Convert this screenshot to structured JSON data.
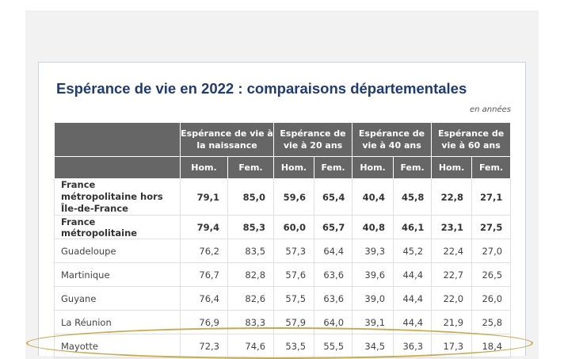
{
  "title": "Espérance de vie en 2022 : comparaisons départementales",
  "unit_note": "en années",
  "table": {
    "groups": [
      {
        "label": "Espérance de vie à la naissance"
      },
      {
        "label": "Espérance de vie à 20 ans"
      },
      {
        "label": "Espérance de vie à 40 ans"
      },
      {
        "label": "Espérance de vie à 60 ans"
      }
    ],
    "sub_hom": "Hom.",
    "sub_fem": "Fem.",
    "rows": [
      {
        "name": "France métropolitaine hors Île-de-France",
        "values": [
          "79,1",
          "85,0",
          "59,6",
          "65,4",
          "40,4",
          "45,8",
          "22,8",
          "27,1"
        ]
      },
      {
        "name": "France métropolitaine",
        "values": [
          "79,4",
          "85,3",
          "60,0",
          "65,7",
          "40,8",
          "46,1",
          "23,1",
          "27,5"
        ]
      },
      {
        "name": "Guadeloupe",
        "values": [
          "76,2",
          "83,5",
          "57,3",
          "64,4",
          "39,3",
          "45,2",
          "22,4",
          "27,0"
        ]
      },
      {
        "name": "Martinique",
        "values": [
          "76,7",
          "82,8",
          "57,6",
          "63,6",
          "39,6",
          "44,4",
          "22,7",
          "26,5"
        ]
      },
      {
        "name": "Guyane",
        "values": [
          "76,4",
          "82,6",
          "57,5",
          "63,6",
          "39,0",
          "44,4",
          "22,0",
          "26,0"
        ]
      },
      {
        "name": "La Réunion",
        "values": [
          "76,9",
          "83,3",
          "57,9",
          "64,0",
          "39,1",
          "44,4",
          "21,9",
          "25,8"
        ]
      },
      {
        "name": "Mayotte",
        "values": [
          "72,3",
          "74,6",
          "53,5",
          "55,5",
          "34,5",
          "36,3",
          "17,3",
          "18,4"
        ]
      }
    ]
  },
  "colors": {
    "title": "#1f3b75",
    "header_bg": "#666666",
    "highlight_ring": "#c9a84c"
  }
}
